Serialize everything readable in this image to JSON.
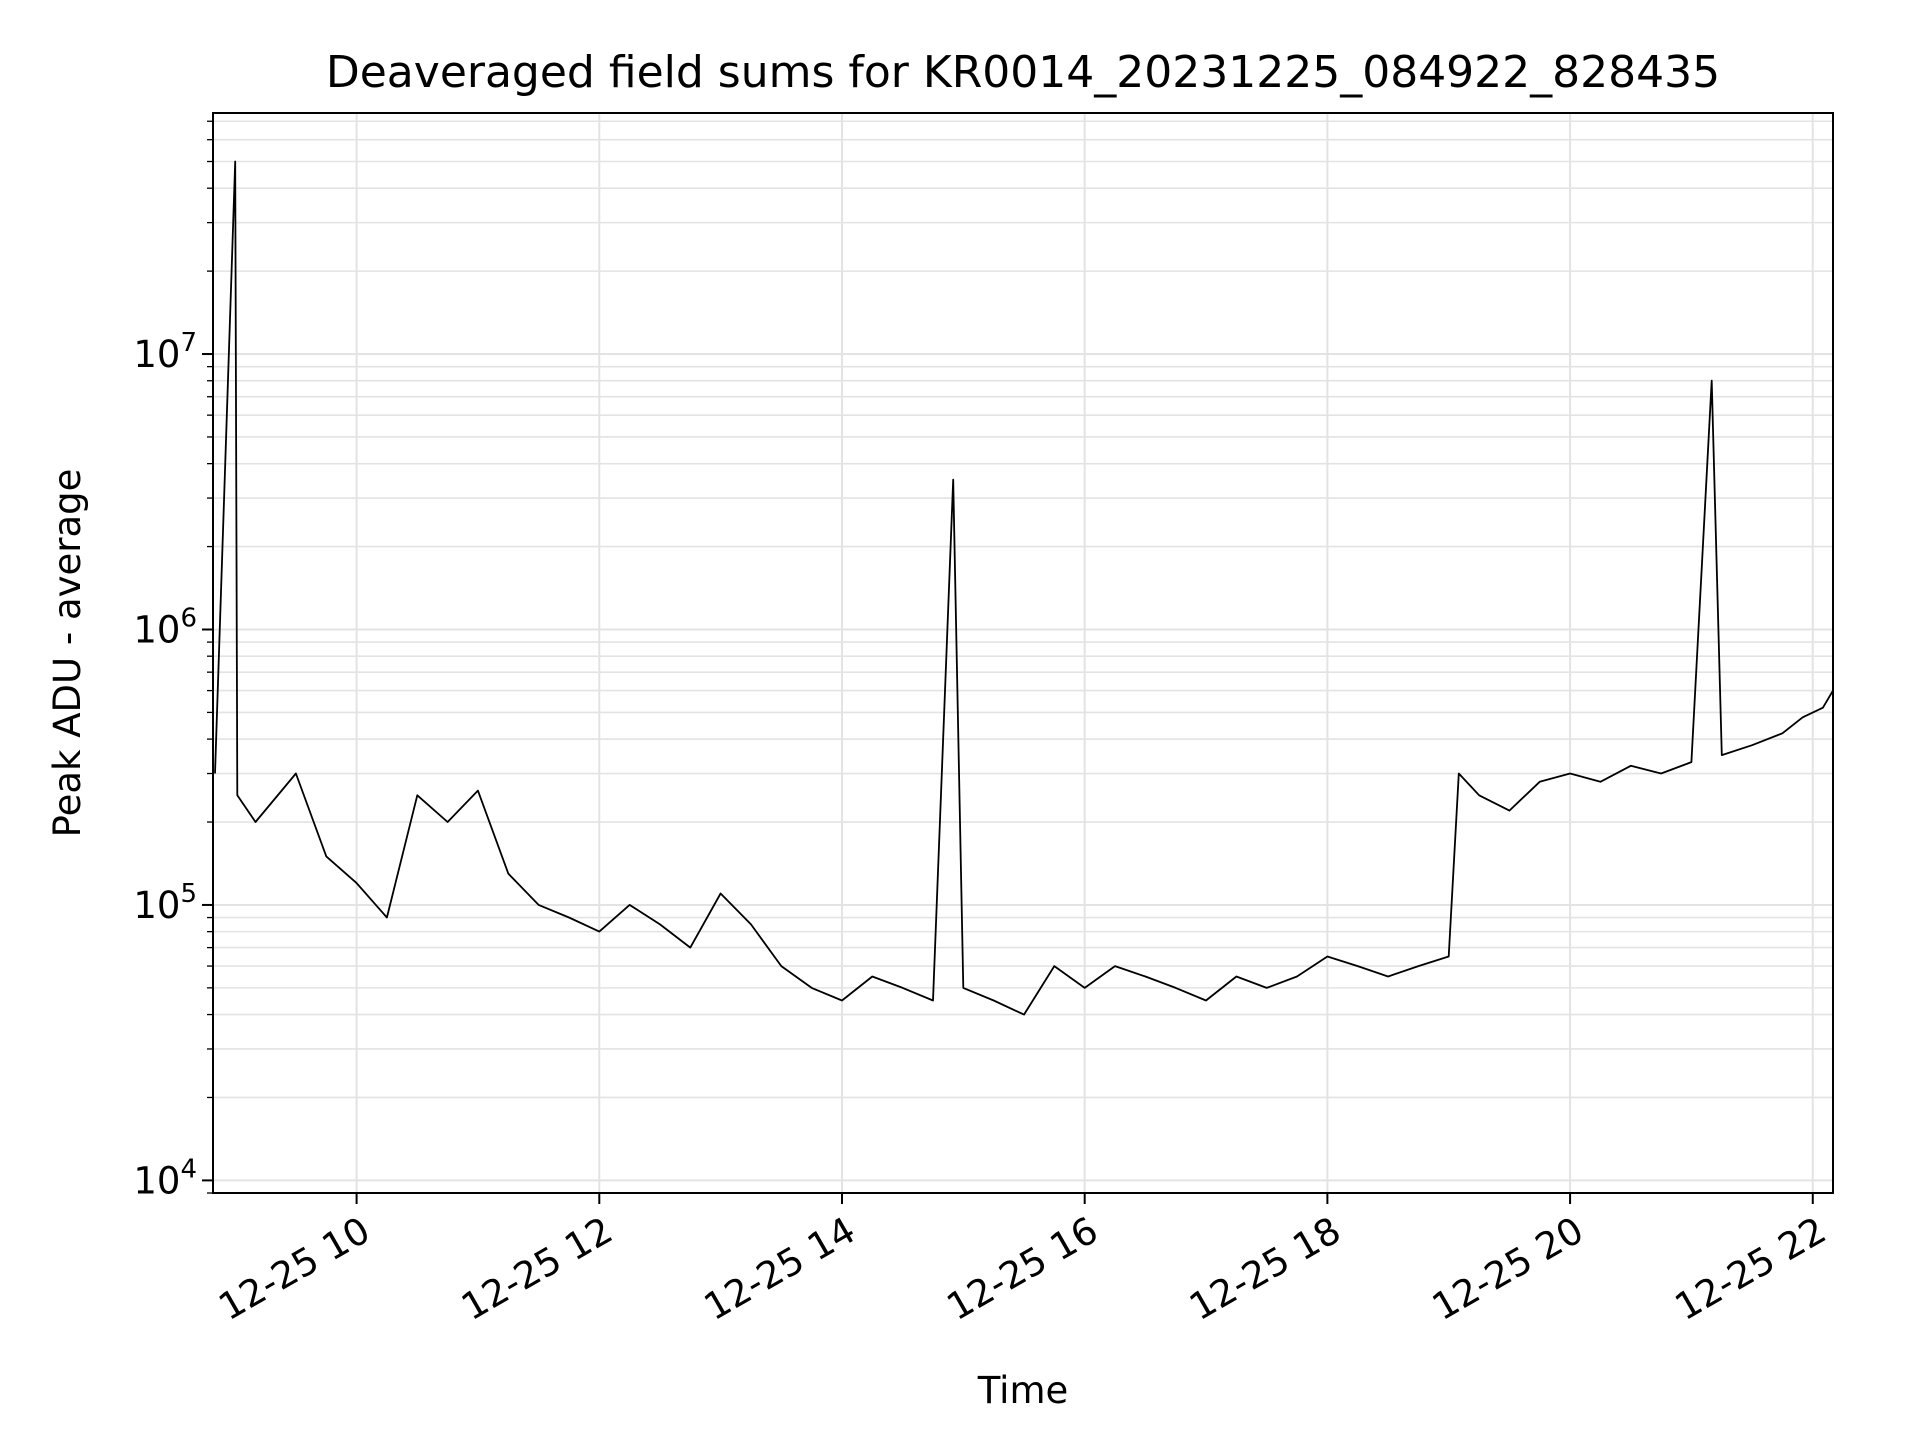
{
  "chart_data": {
    "type": "line",
    "title": "Deaveraged field sums for KR0014_20231225_084922_828435",
    "xlabel": "Time",
    "ylabel": "Peak ADU - average",
    "yscale": "log",
    "xlim": [
      "2023-12-25 08:49",
      "2023-12-25 22:10"
    ],
    "ylim": [
      9000,
      75000000
    ],
    "grid": true,
    "x_ticks": [
      "2023-12-25 10:00",
      "2023-12-25 12:00",
      "2023-12-25 14:00",
      "2023-12-25 16:00",
      "2023-12-25 18:00",
      "2023-12-25 20:00",
      "2023-12-25 22:00"
    ],
    "x_tick_labels": [
      "12-25 10",
      "12-25 12",
      "12-25 14",
      "12-25 16",
      "12-25 18",
      "12-25 20",
      "12-25 22"
    ],
    "y_ticks": [
      10000,
      100000,
      1000000,
      10000000
    ],
    "y_tick_labels": [
      {
        "base": "10",
        "exp": "4"
      },
      {
        "base": "10",
        "exp": "5"
      },
      {
        "base": "10",
        "exp": "6"
      },
      {
        "base": "10",
        "exp": "7"
      }
    ],
    "line_color": "#000000",
    "series": [
      {
        "x": [
          "2023-12-25 08:50",
          "2023-12-25 09:00",
          "2023-12-25 09:01",
          "2023-12-25 09:10",
          "2023-12-25 09:30",
          "2023-12-25 09:45",
          "2023-12-25 10:00",
          "2023-12-25 10:15",
          "2023-12-25 10:30",
          "2023-12-25 10:45",
          "2023-12-25 11:00",
          "2023-12-25 11:15",
          "2023-12-25 11:30",
          "2023-12-25 11:45",
          "2023-12-25 12:00",
          "2023-12-25 12:15",
          "2023-12-25 12:30",
          "2023-12-25 12:45",
          "2023-12-25 13:00",
          "2023-12-25 13:15",
          "2023-12-25 13:30",
          "2023-12-25 13:45",
          "2023-12-25 14:00",
          "2023-12-25 14:15",
          "2023-12-25 14:30",
          "2023-12-25 14:45",
          "2023-12-25 14:55",
          "2023-12-25 15:00",
          "2023-12-25 15:15",
          "2023-12-25 15:30",
          "2023-12-25 15:45",
          "2023-12-25 16:00",
          "2023-12-25 16:15",
          "2023-12-25 16:30",
          "2023-12-25 16:45",
          "2023-12-25 17:00",
          "2023-12-25 17:15",
          "2023-12-25 17:30",
          "2023-12-25 17:45",
          "2023-12-25 18:00",
          "2023-12-25 18:15",
          "2023-12-25 18:30",
          "2023-12-25 18:45",
          "2023-12-25 19:00",
          "2023-12-25 19:05",
          "2023-12-25 19:15",
          "2023-12-25 19:30",
          "2023-12-25 19:45",
          "2023-12-25 20:00",
          "2023-12-25 20:15",
          "2023-12-25 20:30",
          "2023-12-25 20:45",
          "2023-12-25 21:00",
          "2023-12-25 21:10",
          "2023-12-25 21:15",
          "2023-12-25 21:30",
          "2023-12-25 21:45",
          "2023-12-25 21:55",
          "2023-12-25 22:05",
          "2023-12-25 22:10"
        ],
        "y": [
          300000,
          50000000,
          250000,
          200000,
          300000,
          150000,
          120000,
          90000,
          250000,
          200000,
          260000,
          130000,
          100000,
          90000,
          80000,
          100000,
          85000,
          70000,
          110000,
          85000,
          60000,
          50000,
          45000,
          55000,
          50000,
          45000,
          3500000,
          50000,
          45000,
          40000,
          60000,
          50000,
          60000,
          55000,
          50000,
          45000,
          55000,
          50000,
          55000,
          65000,
          60000,
          55000,
          60000,
          65000,
          300000,
          250000,
          220000,
          280000,
          300000,
          280000,
          320000,
          300000,
          330000,
          8000000,
          350000,
          380000,
          420000,
          480000,
          520000,
          600000
        ]
      }
    ]
  }
}
